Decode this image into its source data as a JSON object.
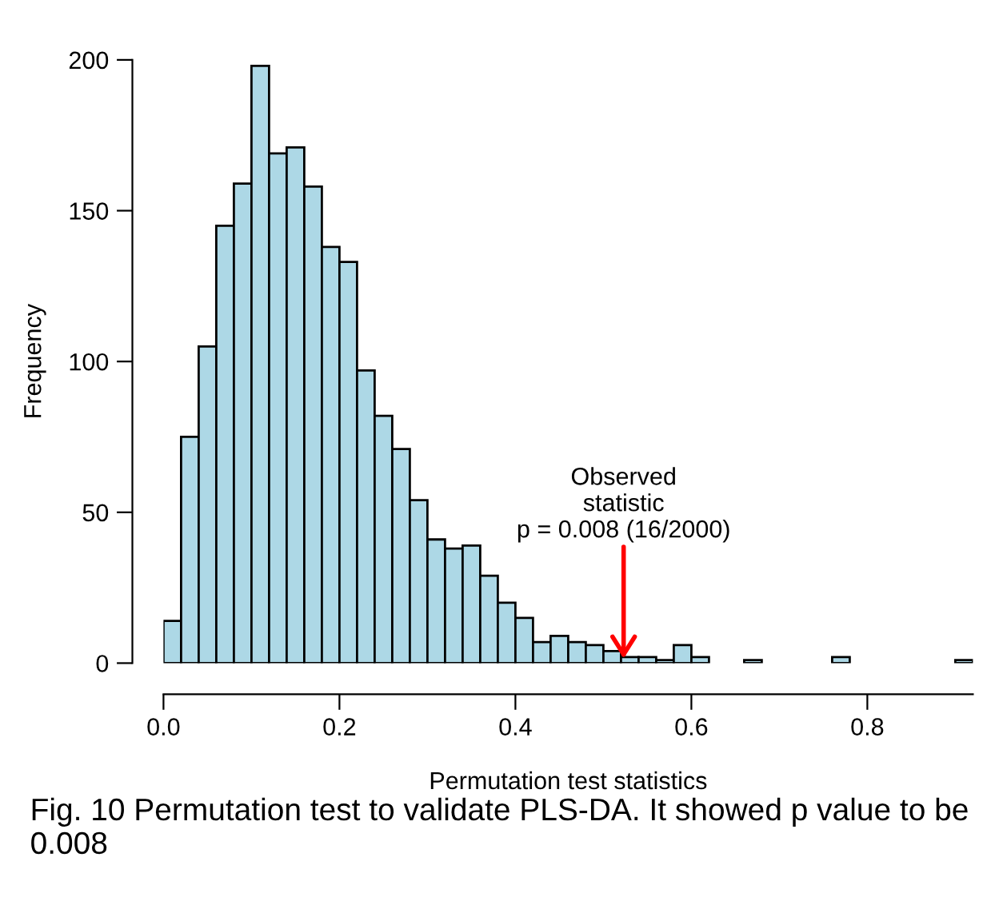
{
  "chart_data": {
    "type": "histogram",
    "xlabel": "Permutation test statistics",
    "ylabel": "Frequency",
    "bins": [
      0.0,
      0.02,
      0.04,
      0.06,
      0.08,
      0.1,
      0.12,
      0.14,
      0.16,
      0.18,
      0.2,
      0.22,
      0.24,
      0.26,
      0.28,
      0.3,
      0.32,
      0.34,
      0.36,
      0.38,
      0.4,
      0.42,
      0.44,
      0.46,
      0.48,
      0.5,
      0.52,
      0.54,
      0.56,
      0.58,
      0.6,
      0.62,
      0.64,
      0.66,
      0.68,
      0.7,
      0.72,
      0.74,
      0.76,
      0.78,
      0.8,
      0.82,
      0.84,
      0.86,
      0.88,
      0.9,
      0.92
    ],
    "values": [
      14,
      75,
      105,
      145,
      159,
      198,
      169,
      171,
      158,
      138,
      133,
      97,
      82,
      71,
      54,
      41,
      38,
      39,
      29,
      20,
      15,
      7,
      9,
      7,
      6,
      4,
      2,
      2,
      1,
      6,
      2,
      0,
      0,
      1,
      0,
      0,
      0,
      0,
      2,
      0,
      0,
      0,
      0,
      0,
      0,
      1
    ],
    "color": "#add8e6",
    "xlim": [
      0,
      0.92
    ],
    "ylim": [
      0,
      200
    ],
    "xticks": [
      {
        "value": 0,
        "label": "0.0"
      },
      0.2,
      0.4,
      0.6,
      0.8
    ],
    "yticks": [
      0,
      50,
      100,
      150,
      200
    ],
    "grid": false,
    "legend": false,
    "annotations": [
      {
        "text": "Observed\nstatistic\np = 0.008 (16/2000)",
        "x": 0.523,
        "y": 0
      },
      "Fig. 10 Permutation test to validate PLS-DA. It showed p value to be 0.008"
    ]
  }
}
